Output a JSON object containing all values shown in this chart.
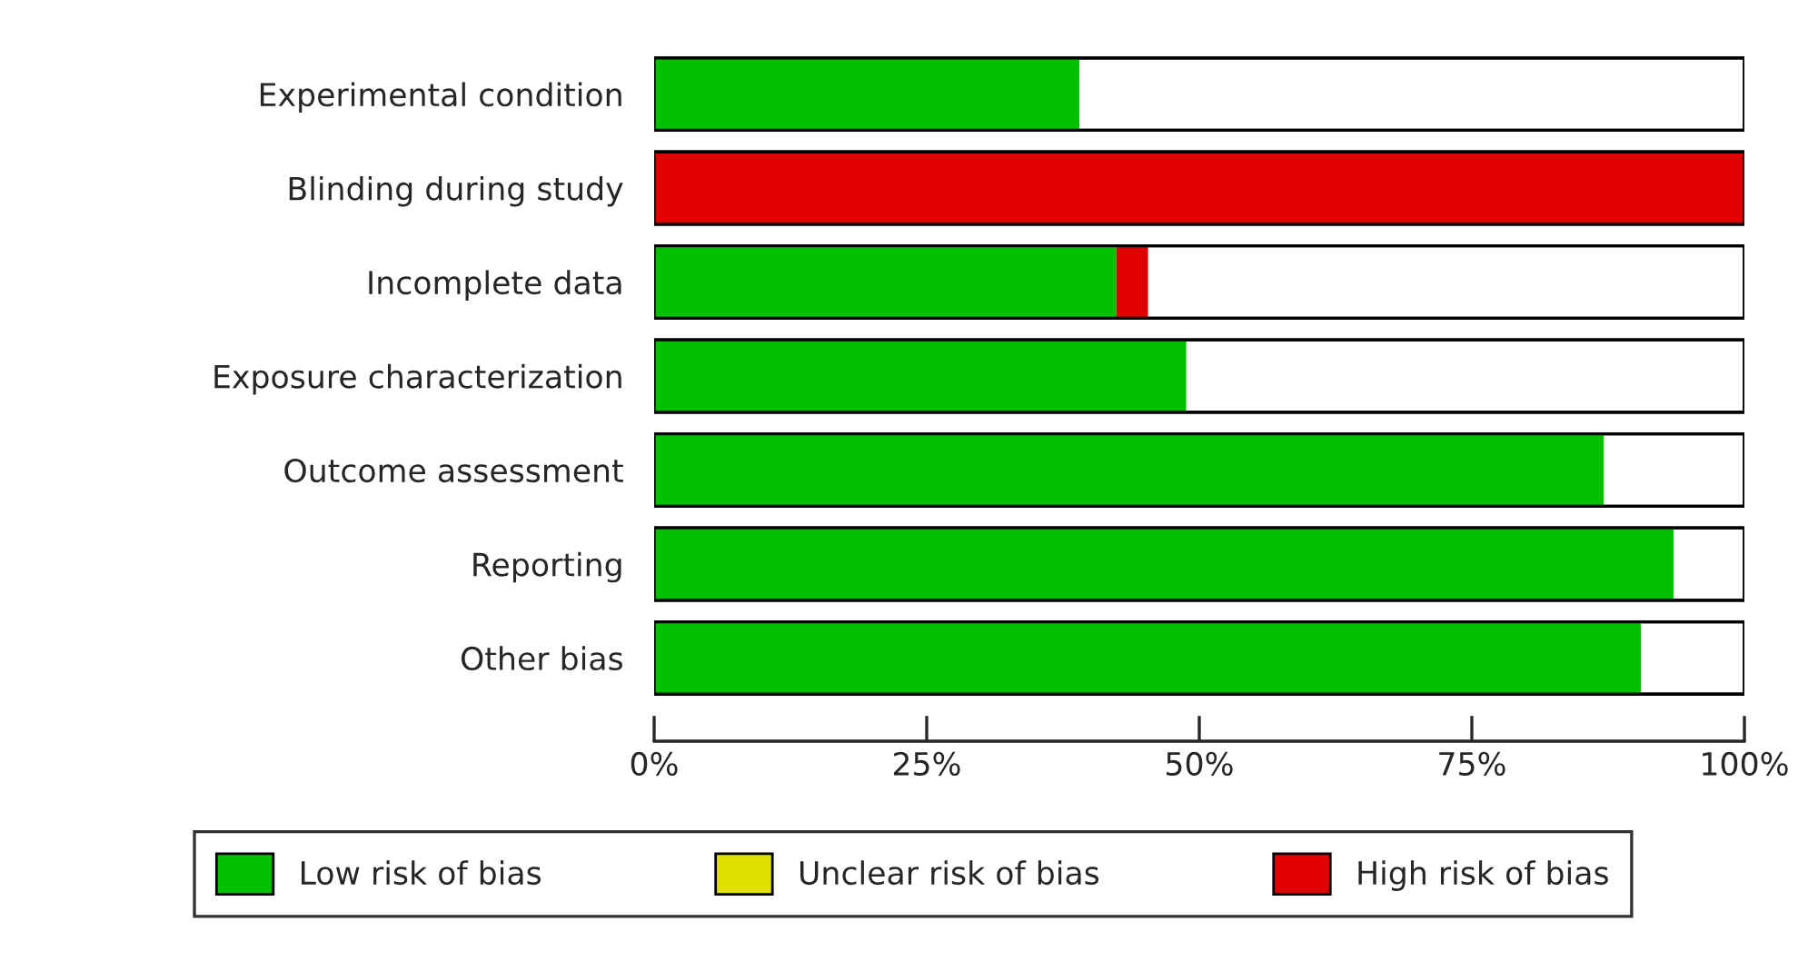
{
  "chart_data": {
    "type": "bar",
    "orientation": "horizontal",
    "stacked": true,
    "categories": [
      "Experimental condition",
      "Blinding during study",
      "Incomplete data",
      "Exposure characterization",
      "Outcome assessment",
      "Reporting",
      "Other bias"
    ],
    "series": [
      {
        "name": "Low risk of bias",
        "color": "#00c000",
        "values": [
          39,
          0,
          42.4,
          48.8,
          87.1,
          93.5,
          90.5
        ]
      },
      {
        "name": "Unclear risk of bias",
        "color": "#e0e000",
        "values": [
          0,
          0,
          0,
          0,
          0,
          0,
          0
        ]
      },
      {
        "name": "High risk of bias",
        "color": "#e00000",
        "values": [
          0,
          100,
          2.9,
          0,
          0,
          0,
          0
        ]
      }
    ],
    "xlim": [
      0,
      100
    ],
    "xticks": [
      {
        "value": 0,
        "label": "0%"
      },
      {
        "value": 25,
        "label": "25%"
      },
      {
        "value": 50,
        "label": "50%"
      },
      {
        "value": 75,
        "label": "75%"
      },
      {
        "value": 100,
        "label": "100%"
      }
    ],
    "grid": false,
    "legend": "bottom"
  }
}
